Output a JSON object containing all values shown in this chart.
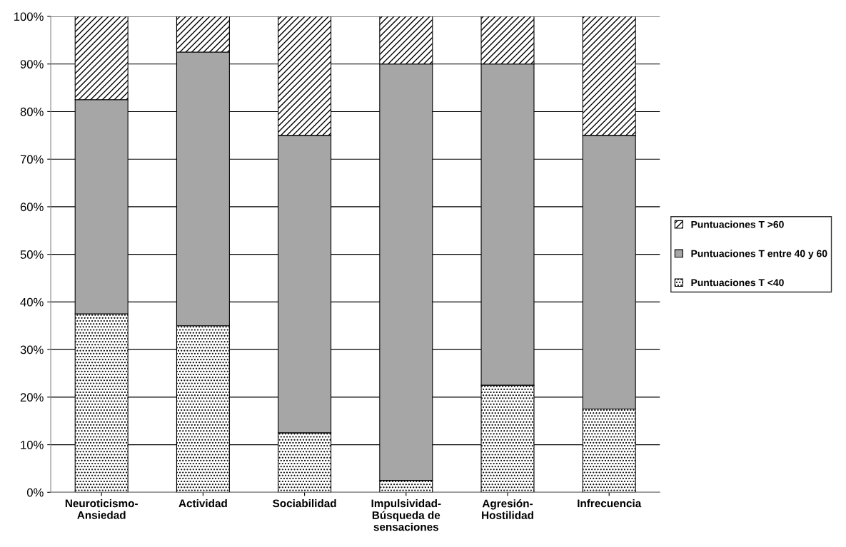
{
  "chart_data": {
    "type": "bar",
    "stacked": true,
    "categories": [
      "Neuroticismo-\nAnsiedad",
      "Actividad",
      "Sociabilidad",
      "Impulsividad-\nBúsqueda de\nsensaciones",
      "Agresión-\nHostilidad",
      "Infrecuencia"
    ],
    "series": [
      {
        "name": "Puntuaciones T <40",
        "color": "#000000",
        "values": [
          37.5,
          35,
          12.5,
          2.5,
          22.5,
          17.5
        ]
      },
      {
        "name": "Puntuaciones T entre 40 y 60",
        "color": "#a6a6a6",
        "values": [
          45,
          57.5,
          62.5,
          87.5,
          67.5,
          57.5
        ]
      },
      {
        "name": "Puntuaciones T >60",
        "color": "#000000",
        "values": [
          17.5,
          7.5,
          25,
          10,
          10,
          25
        ]
      }
    ],
    "ylim": [
      0,
      100
    ],
    "yticks": [
      {
        "value": 0,
        "label": "0%"
      },
      {
        "value": 10,
        "label": "10%"
      },
      {
        "value": 20,
        "label": "20%"
      },
      {
        "value": 30,
        "label": "30%"
      },
      {
        "value": 40,
        "label": "40%"
      },
      {
        "value": 50,
        "label": "50%"
      },
      {
        "value": 60,
        "label": "60%"
      },
      {
        "value": 70,
        "label": "70%"
      },
      {
        "value": 80,
        "label": "80%"
      },
      {
        "value": 90,
        "label": "90%"
      },
      {
        "value": 100,
        "label": "100%"
      }
    ],
    "grid": "y",
    "legend": "right"
  }
}
